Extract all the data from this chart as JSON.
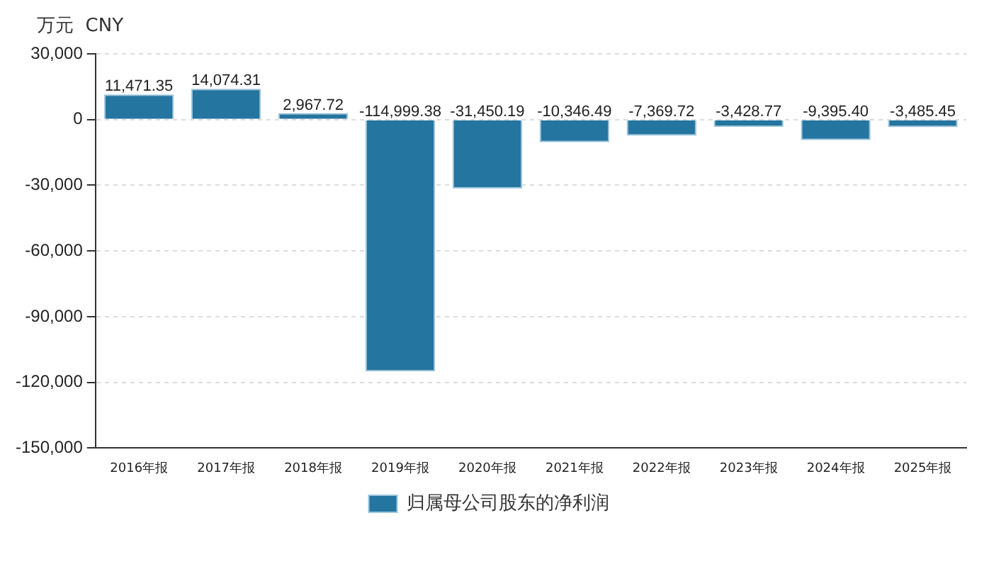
{
  "chart_data": {
    "type": "bar",
    "ylabel": "万元  CNY",
    "categories": [
      "2016年报",
      "2017年报",
      "2018年报",
      "2019年报",
      "2020年报",
      "2021年报",
      "2022年报",
      "2023年报",
      "2024年报",
      "2025年报"
    ],
    "series": [
      {
        "name": "归属母公司股东的净利润",
        "color": "#2475a0",
        "values": [
          11471.35,
          14074.31,
          2967.72,
          -114999.38,
          -31450.19,
          -10346.49,
          -7369.72,
          -3428.77,
          -9395.4,
          -3485.45
        ],
        "value_labels": [
          "11,471.35",
          "14,074.31",
          "2,967.72",
          "-114,999.38",
          "-31,450.19",
          "-10,346.49",
          "-7,369.72",
          "-3,428.77",
          "-9,395.40",
          "-3,485.45"
        ]
      }
    ],
    "ylim": [
      -150000,
      30000
    ],
    "yticks": [
      {
        "value": -150000,
        "label": "-150,000"
      },
      {
        "value": -120000,
        "label": "-120,000"
      },
      {
        "value": -90000,
        "label": "-90,000"
      },
      {
        "value": -60000,
        "label": "-60,000"
      },
      {
        "value": -30000,
        "label": "-30,000"
      },
      0,
      {
        "value": 30000,
        "label": "30,000"
      }
    ],
    "grid": "y",
    "legend": "bottom"
  }
}
